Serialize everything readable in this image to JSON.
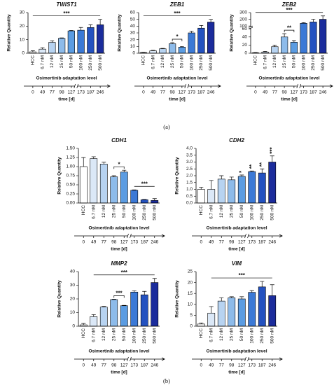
{
  "chart_data": [
    {
      "type": "bar",
      "title": "TWIST1",
      "ylabel": "Relative Quantity",
      "xlabel": "Osimertinib adaptation level",
      "categories": [
        "HCC",
        "6.7 nM",
        "12 nM",
        "25 nM",
        "50 nM",
        "100 nM",
        "250 nM",
        "500 nM"
      ],
      "values": [
        1,
        3,
        8,
        11,
        16.5,
        17,
        19,
        21
      ],
      "errors": [
        0.8,
        1,
        1.2,
        0.3,
        0.3,
        2,
        2,
        4
      ],
      "colors": [
        "#ffffff",
        "#dbe8f7",
        "#b7d3f1",
        "#8dbbea",
        "#5b9ce2",
        "#3b79d6",
        "#2452c0",
        "#1b2c9c"
      ],
      "ylim": [
        0,
        30
      ],
      "yticks": [
        0,
        10,
        20,
        30
      ],
      "annotations": [
        {
          "text": "***",
          "from": 0,
          "to": 7
        }
      ],
      "time_ticks": [
        0,
        49,
        77,
        98,
        127,
        173,
        187,
        246
      ],
      "time_label": "time [d]"
    },
    {
      "type": "bar",
      "title": "ZEB1",
      "ylabel": "Relative Quantity",
      "xlabel": "Osimertinib adaptation level",
      "categories": [
        "HCC",
        "6.7 nM",
        "12 nM",
        "25 nM",
        "50 nM",
        "100 nM",
        "250 nM",
        "500 nM"
      ],
      "values": [
        1,
        3.5,
        6.5,
        14,
        9,
        30,
        37,
        46
      ],
      "errors": [
        0.5,
        0.8,
        0.7,
        1.5,
        1,
        2.5,
        4,
        4
      ],
      "colors": [
        "#ffffff",
        "#dbe8f7",
        "#b7d3f1",
        "#8dbbea",
        "#5b9ce2",
        "#3b79d6",
        "#2452c0",
        "#1b2c9c"
      ],
      "ylim": [
        0,
        60
      ],
      "yticks": [
        0,
        10,
        20,
        30,
        40,
        50,
        60
      ],
      "annotations": [
        {
          "text": "*",
          "from": 3,
          "to": 4
        },
        {
          "text": "***",
          "from": 0,
          "to": 7
        }
      ],
      "time_ticks": [
        0,
        49,
        77,
        98,
        127,
        173,
        187,
        246
      ],
      "time_label": "time [d]"
    },
    {
      "type": "bar",
      "title": "ZEB2",
      "ylabel": "Relative Quantity",
      "xlabel": "Osimertinib adaptation level",
      "categories": [
        "HCC",
        "6.7 nM",
        "12 nM",
        "25 nM",
        "50 nM",
        "100 nM",
        "250 nM",
        "500 nM"
      ],
      "values": [
        1,
        3,
        16,
        40,
        27,
        140,
        160,
        200
      ],
      "errors": [
        0.8,
        1.5,
        4,
        8,
        4,
        10,
        40,
        50
      ],
      "colors": [
        "#ffffff",
        "#dbe8f7",
        "#b7d3f1",
        "#8dbbea",
        "#5b9ce2",
        "#3b79d6",
        "#2452c0",
        "#1b2c9c"
      ],
      "ylim": [
        0,
        300
      ],
      "axis_break": [
        60,
        100
      ],
      "yticks": [
        0,
        20,
        40,
        60,
        100,
        200,
        300
      ],
      "annotations": [
        {
          "text": "**",
          "from": 3,
          "to": 4
        },
        {
          "text": "***",
          "from": 0,
          "to": 7
        }
      ],
      "time_ticks": [
        0,
        49,
        77,
        98,
        127,
        173,
        187,
        246
      ],
      "time_label": "time [d]"
    },
    {
      "type": "bar",
      "title": "CDH1",
      "ylabel": "Relative Quantity",
      "xlabel": "Osimertinib adaptation level",
      "categories": [
        "HCC",
        "6.7 nM",
        "12 nM",
        "25 nM",
        "50 nM",
        "100 nM",
        "250 nM",
        "500 nM"
      ],
      "values": [
        1.0,
        1.22,
        1.07,
        0.72,
        0.85,
        0.35,
        0.09,
        0.07
      ],
      "errors": [
        0.25,
        0.05,
        0.05,
        0.03,
        0.05,
        0.01,
        0.01,
        0.05
      ],
      "colors": [
        "#ffffff",
        "#dbe8f7",
        "#b7d3f1",
        "#8dbbea",
        "#5b9ce2",
        "#3b79d6",
        "#2452c0",
        "#1b2c9c"
      ],
      "ylim": [
        0,
        1.5
      ],
      "yticks": [
        {
          "value": 0,
          "label": "0.00"
        },
        {
          "value": 0.25,
          "label": "0.25"
        },
        {
          "value": 0.5,
          "label": "0.50"
        },
        {
          "value": 0.75,
          "label": "0.75"
        },
        {
          "value": 1,
          "label": "1.00"
        },
        {
          "value": 1.25,
          "label": "1.25"
        },
        {
          "value": 1.5,
          "label": "1.50"
        }
      ],
      "annotations": [
        {
          "text": "*",
          "from": 3,
          "to": 4
        },
        {
          "text": "***",
          "from": 5,
          "to": 7
        }
      ],
      "time_ticks": [
        0,
        49,
        77,
        98,
        127,
        173,
        187,
        246
      ],
      "time_label": "time [d]"
    },
    {
      "type": "bar",
      "title": "CDH2",
      "ylabel": "Relative Quantity",
      "xlabel": "Osimertinib adaptation level",
      "categories": [
        "HCC",
        "6.7 nM",
        "12 nM",
        "25 nM",
        "50 nM",
        "100 nM",
        "250 nM",
        "500 nM"
      ],
      "values": [
        1.0,
        1.0,
        1.75,
        1.7,
        1.95,
        2.3,
        2.2,
        3.0
      ],
      "errors": [
        0.15,
        0.65,
        0.25,
        0.2,
        0.1,
        0.05,
        0.3,
        0.45
      ],
      "colors": [
        "#ffffff",
        "#dbe8f7",
        "#b7d3f1",
        "#8dbbea",
        "#5b9ce2",
        "#3b79d6",
        "#2452c0",
        "#1b2c9c"
      ],
      "ylim": [
        0,
        4
      ],
      "yticks": [
        {
          "value": 0,
          "label": "0.0"
        },
        0.5,
        {
          "value": 1,
          "label": "1.0"
        },
        1.5,
        {
          "value": 2,
          "label": "2.0"
        },
        2.5,
        {
          "value": 3,
          "label": "3.0"
        },
        3.5,
        {
          "value": 4,
          "label": "4.0"
        }
      ],
      "annotations": [
        {
          "text": "*",
          "at": 4
        },
        {
          "text": "**",
          "at": 5
        },
        {
          "text": "**",
          "at": 6
        },
        {
          "text": "***",
          "at": 7
        }
      ],
      "time_ticks": [
        0,
        49,
        77,
        98,
        127,
        173,
        187,
        246
      ],
      "time_label": "time [d]"
    },
    {
      "type": "bar",
      "title": "MMP2",
      "ylabel": "Relative Quantity",
      "xlabel": "Osimertinib adaptation level",
      "categories": [
        "HCC",
        "6.7 nM",
        "12 nM",
        "25 nM",
        "50 nM",
        "100 nM",
        "250 nM",
        "500 nM"
      ],
      "values": [
        1,
        7,
        14,
        19.5,
        15,
        25,
        23,
        32
      ],
      "errors": [
        1,
        1.5,
        0.5,
        0.3,
        0.3,
        1,
        2.5,
        3
      ],
      "colors": [
        "#ffffff",
        "#dbe8f7",
        "#b7d3f1",
        "#8dbbea",
        "#5b9ce2",
        "#3b79d6",
        "#2452c0",
        "#1b2c9c"
      ],
      "ylim": [
        0,
        40
      ],
      "yticks": [
        0,
        10,
        20,
        30,
        40
      ],
      "annotations": [
        {
          "text": "***",
          "from": 3,
          "to": 4
        },
        {
          "text": "***",
          "from": 1,
          "to": 7
        }
      ],
      "time_ticks": [
        0,
        49,
        77,
        98,
        127,
        173,
        187,
        246
      ],
      "time_label": "time [d]"
    },
    {
      "type": "bar",
      "title": "VIM",
      "ylabel": "Relative Quantity",
      "xlabel": "Osimertinib adaptation level",
      "categories": [
        "HCC",
        "6.7 nM",
        "12 nM",
        "25 nM",
        "50 nM",
        "100 nM",
        "250 nM",
        "500 nM"
      ],
      "values": [
        1,
        6,
        11.5,
        13,
        12.5,
        15.5,
        18,
        14
      ],
      "errors": [
        0.5,
        3,
        1.5,
        0.5,
        1,
        0.8,
        2.5,
        5
      ],
      "colors": [
        "#ffffff",
        "#dbe8f7",
        "#b7d3f1",
        "#8dbbea",
        "#5b9ce2",
        "#3b79d6",
        "#2452c0",
        "#1b2c9c"
      ],
      "ylim": [
        0,
        25
      ],
      "yticks": [
        0,
        5,
        10,
        15,
        20,
        25
      ],
      "annotations": [
        {
          "text": "***",
          "from": 1,
          "to": 7
        }
      ],
      "time_ticks": [
        0,
        49,
        77,
        98,
        127,
        173,
        187,
        246
      ],
      "time_label": "time [d]"
    }
  ],
  "panels": [
    "(a)",
    "(b)"
  ]
}
